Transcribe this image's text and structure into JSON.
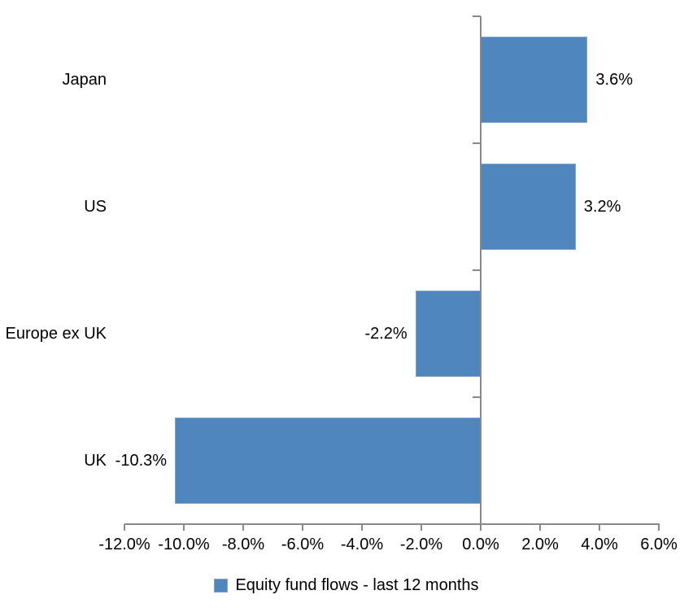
{
  "chart_data": {
    "type": "bar",
    "orientation": "horizontal",
    "title": "",
    "categories": [
      "Japan",
      "US",
      "Europe ex UK",
      "UK"
    ],
    "series": [
      {
        "name": "Equity fund flows - last 12 months",
        "values": [
          3.6,
          3.2,
          -2.2,
          -10.3
        ]
      }
    ],
    "data_labels": [
      "3.6%",
      "3.2%",
      "-2.2%",
      "-10.3%"
    ],
    "xlim": [
      -12,
      6
    ],
    "x_tick_values": [
      -12,
      -10,
      -8,
      -6,
      -4,
      -2,
      0,
      2,
      4,
      6
    ],
    "x_tick_labels": [
      "-12.0%",
      "-10.0%",
      "-8.0%",
      "-6.0%",
      "-4.0%",
      "-2.0%",
      "0.0%",
      "2.0%",
      "4.0%",
      "6.0%"
    ],
    "grid": false,
    "legend_position": "bottom",
    "colors": {
      "bar": "#4E86BD",
      "bar_border": "#7FA5CC",
      "axis": "#898989",
      "text": "#000000",
      "background": "#FFFFFF"
    }
  }
}
